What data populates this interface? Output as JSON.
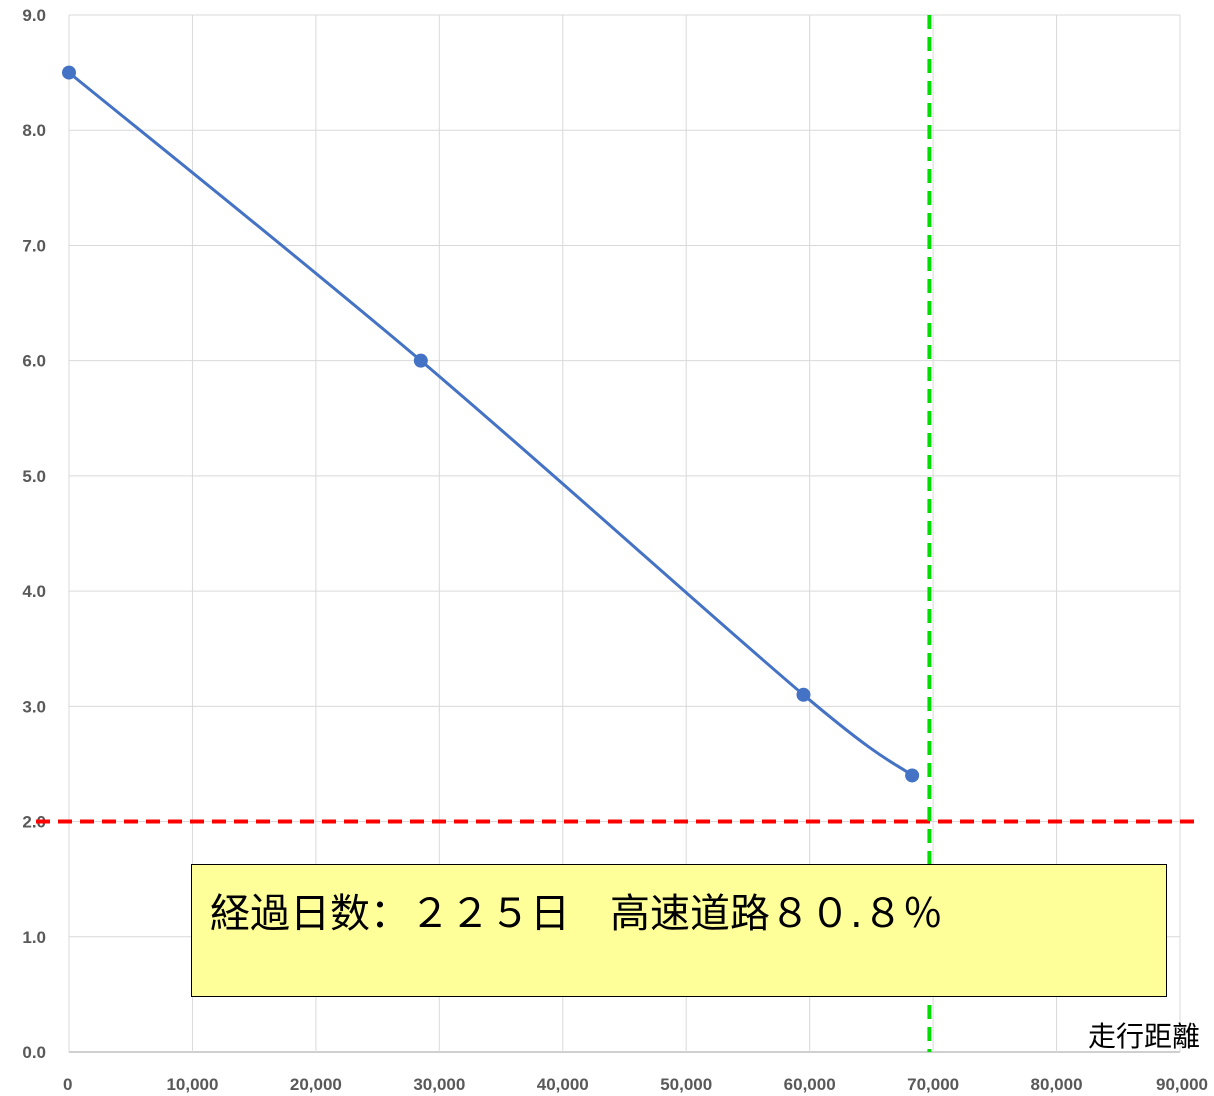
{
  "chart_data": {
    "type": "line",
    "xlabel": "走行距離",
    "ylabel": "",
    "xlim": [
      0,
      90000
    ],
    "ylim": [
      0,
      9
    ],
    "x_ticks": [
      "0",
      "10,000",
      "20,000",
      "30,000",
      "40,000",
      "50,000",
      "60,000",
      "70,000",
      "80,000",
      "90,000"
    ],
    "y_ticks": [
      "0.0",
      "1.0",
      "2.0",
      "3.0",
      "4.0",
      "5.0",
      "6.0",
      "7.0",
      "8.0",
      "9.0"
    ],
    "grid": true,
    "series": [
      {
        "x": [
          0,
          28500,
          59500,
          68300
        ],
        "y": [
          8.5,
          6.0,
          3.1,
          2.4
        ],
        "color": "#4472c4"
      }
    ],
    "reference_lines": [
      {
        "orientation": "horizontal",
        "value": 2.0,
        "color": "#ff0000",
        "style": "dashed"
      },
      {
        "orientation": "vertical",
        "value": 69700,
        "color": "#00dd00",
        "style": "dashed"
      }
    ],
    "annotation": "経過日数：２２５日　高速道路８０.８％"
  }
}
